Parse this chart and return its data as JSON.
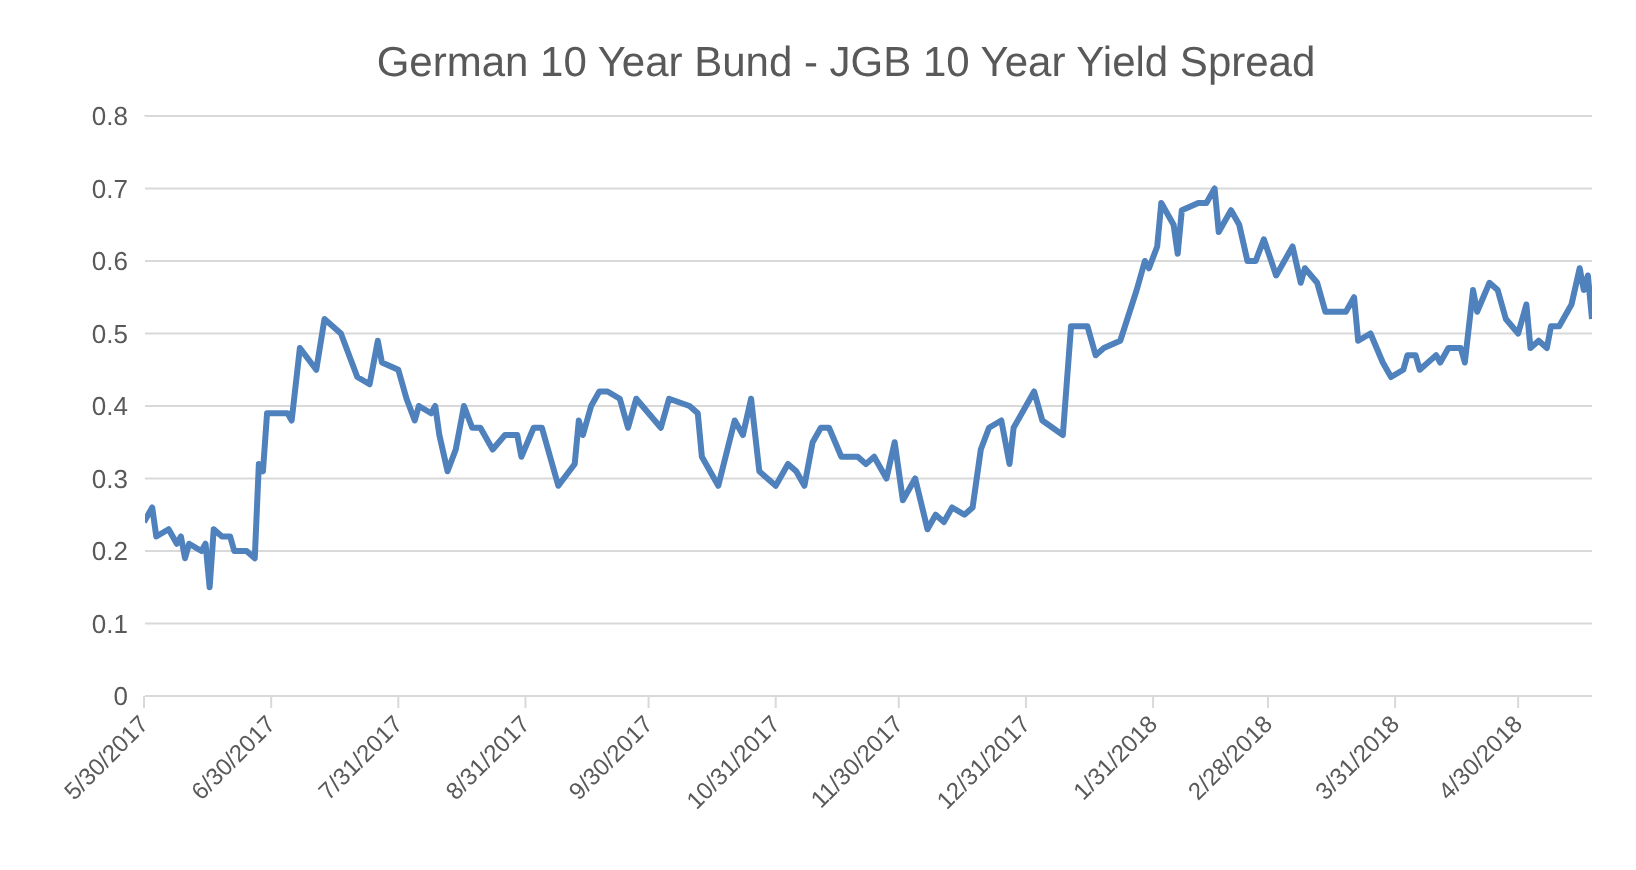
{
  "chart_data": {
    "type": "line",
    "title": "German 10 Year Bund - JGB 10 Year Yield Spread",
    "grid": "y",
    "legend": false,
    "marker": "none",
    "line_style": "solid",
    "xlim": [
      "2017-05-30",
      "2018-05-18"
    ],
    "xticks": [
      {
        "value": "2017-05-30",
        "label": "5/30/2017"
      },
      {
        "value": "2017-06-30",
        "label": "6/30/2017"
      },
      {
        "value": "2017-07-31",
        "label": "7/31/2017"
      },
      {
        "value": "2017-08-31",
        "label": "8/31/2017"
      },
      {
        "value": "2017-09-30",
        "label": "9/30/2017"
      },
      {
        "value": "2017-10-31",
        "label": "10/31/2017"
      },
      {
        "value": "2017-11-30",
        "label": "11/30/2017"
      },
      {
        "value": "2017-12-31",
        "label": "12/31/2017"
      },
      {
        "value": "2018-01-31",
        "label": "1/31/2018"
      },
      {
        "value": "2018-02-28",
        "label": "2/28/2018"
      },
      {
        "value": "2018-03-31",
        "label": "3/31/2018"
      },
      {
        "value": "2018-04-30",
        "label": "4/30/2018"
      }
    ],
    "ylim": [
      0,
      0.8
    ],
    "yticks": [
      0,
      0.1,
      0.2,
      0.3,
      0.4,
      0.5,
      0.6,
      0.7,
      0.8
    ],
    "x": [
      "2017-05-30",
      "2017-06-01",
      "2017-06-02",
      "2017-06-05",
      "2017-06-07",
      "2017-06-08",
      "2017-06-09",
      "2017-06-10",
      "2017-06-13",
      "2017-06-14",
      "2017-06-15",
      "2017-06-16",
      "2017-06-18",
      "2017-06-20",
      "2017-06-21",
      "2017-06-24",
      "2017-06-26",
      "2017-06-27",
      "2017-06-28",
      "2017-06-29",
      "2017-07-04",
      "2017-07-05",
      "2017-07-07",
      "2017-07-11",
      "2017-07-13",
      "2017-07-17",
      "2017-07-21",
      "2017-07-24",
      "2017-07-26",
      "2017-07-27",
      "2017-07-31",
      "2017-08-02",
      "2017-08-04",
      "2017-08-05",
      "2017-08-08",
      "2017-08-09",
      "2017-08-10",
      "2017-08-12",
      "2017-08-14",
      "2017-08-16",
      "2017-08-18",
      "2017-08-20",
      "2017-08-23",
      "2017-08-26",
      "2017-08-29",
      "2017-08-30",
      "2017-09-02",
      "2017-09-04",
      "2017-09-08",
      "2017-09-12",
      "2017-09-13",
      "2017-09-14",
      "2017-09-16",
      "2017-09-18",
      "2017-09-20",
      "2017-09-23",
      "2017-09-25",
      "2017-09-27",
      "2017-10-03",
      "2017-10-05",
      "2017-10-10",
      "2017-10-12",
      "2017-10-13",
      "2017-10-17",
      "2017-10-21",
      "2017-10-23",
      "2017-10-25",
      "2017-10-27",
      "2017-10-31",
      "2017-11-03",
      "2017-11-05",
      "2017-11-07",
      "2017-11-09",
      "2017-11-11",
      "2017-11-13",
      "2017-11-16",
      "2017-11-20",
      "2017-11-22",
      "2017-11-24",
      "2017-11-27",
      "2017-11-29",
      "2017-12-01",
      "2017-12-04",
      "2017-12-07",
      "2017-12-09",
      "2017-12-11",
      "2017-12-13",
      "2017-12-16",
      "2017-12-18",
      "2017-12-20",
      "2017-12-22",
      "2017-12-25",
      "2017-12-27",
      "2017-12-28",
      "2018-01-02",
      "2018-01-04",
      "2018-01-09",
      "2018-01-11",
      "2018-01-15",
      "2018-01-17",
      "2018-01-19",
      "2018-01-23",
      "2018-01-27",
      "2018-01-29",
      "2018-01-30",
      "2018-02-01",
      "2018-02-02",
      "2018-02-05",
      "2018-02-06",
      "2018-02-07",
      "2018-02-11",
      "2018-02-13",
      "2018-02-15",
      "2018-02-16",
      "2018-02-19",
      "2018-02-21",
      "2018-02-23",
      "2018-02-25",
      "2018-02-27",
      "2018-03-02",
      "2018-03-06",
      "2018-03-08",
      "2018-03-09",
      "2018-03-12",
      "2018-03-14",
      "2018-03-19",
      "2018-03-21",
      "2018-03-22",
      "2018-03-25",
      "2018-03-28",
      "2018-03-30",
      "2018-04-02",
      "2018-04-03",
      "2018-04-05",
      "2018-04-06",
      "2018-04-10",
      "2018-04-11",
      "2018-04-13",
      "2018-04-16",
      "2018-04-17",
      "2018-04-19",
      "2018-04-20",
      "2018-04-23",
      "2018-04-25",
      "2018-04-27",
      "2018-04-30",
      "2018-05-02",
      "2018-05-03",
      "2018-05-05",
      "2018-05-07",
      "2018-05-08",
      "2018-05-10",
      "2018-05-13",
      "2018-05-15",
      "2018-05-16",
      "2018-05-17",
      "2018-05-18"
    ],
    "series": [
      {
        "color": "#4f81bd",
        "values": [
          0.24,
          0.26,
          0.22,
          0.23,
          0.21,
          0.22,
          0.19,
          0.21,
          0.2,
          0.21,
          0.15,
          0.23,
          0.22,
          0.22,
          0.2,
          0.2,
          0.19,
          0.32,
          0.31,
          0.39,
          0.39,
          0.38,
          0.48,
          0.45,
          0.52,
          0.5,
          0.44,
          0.43,
          0.49,
          0.46,
          0.45,
          0.41,
          0.38,
          0.4,
          0.39,
          0.4,
          0.36,
          0.31,
          0.34,
          0.4,
          0.37,
          0.37,
          0.34,
          0.36,
          0.36,
          0.33,
          0.37,
          0.37,
          0.29,
          0.32,
          0.38,
          0.36,
          0.4,
          0.42,
          0.42,
          0.41,
          0.37,
          0.41,
          0.37,
          0.41,
          0.4,
          0.39,
          0.33,
          0.29,
          0.38,
          0.36,
          0.41,
          0.31,
          0.29,
          0.32,
          0.31,
          0.29,
          0.35,
          0.37,
          0.37,
          0.33,
          0.33,
          0.32,
          0.33,
          0.3,
          0.35,
          0.27,
          0.3,
          0.23,
          0.25,
          0.24,
          0.26,
          0.25,
          0.26,
          0.34,
          0.37,
          0.38,
          0.32,
          0.37,
          0.42,
          0.38,
          0.36,
          0.51,
          0.51,
          0.47,
          0.48,
          0.49,
          0.56,
          0.6,
          0.59,
          0.62,
          0.68,
          0.65,
          0.61,
          0.67,
          0.68,
          0.68,
          0.7,
          0.64,
          0.67,
          0.65,
          0.6,
          0.6,
          0.63,
          0.58,
          0.62,
          0.57,
          0.59,
          0.57,
          0.53,
          0.53,
          0.55,
          0.49,
          0.5,
          0.46,
          0.44,
          0.45,
          0.47,
          0.47,
          0.45,
          0.47,
          0.46,
          0.48,
          0.48,
          0.46,
          0.56,
          0.53,
          0.57,
          0.56,
          0.52,
          0.5,
          0.54,
          0.48,
          0.49,
          0.48,
          0.51,
          0.51,
          0.54,
          0.59,
          0.56,
          0.58,
          0.52
        ]
      }
    ]
  }
}
